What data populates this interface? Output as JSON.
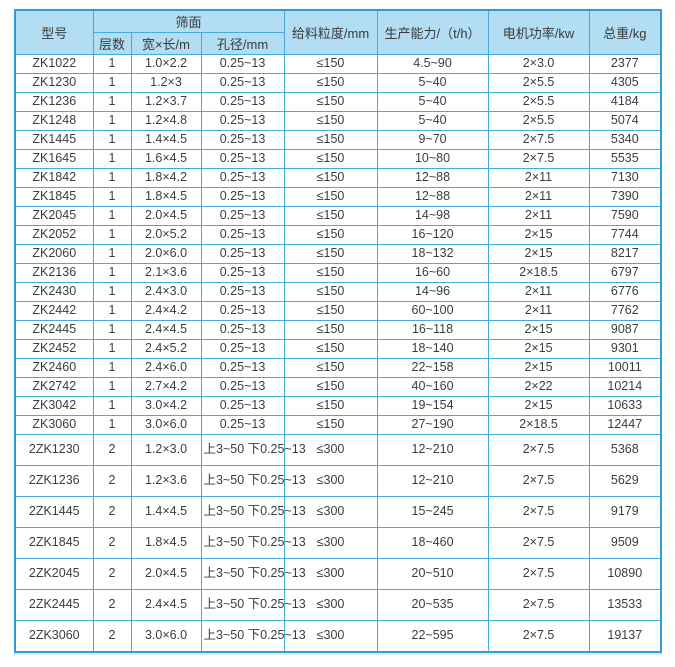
{
  "table": {
    "header": {
      "model": "型号",
      "screen_surface": "筛面",
      "layers": "层数",
      "width_length": "宽×长/m",
      "aperture": "孔径/mm",
      "feed_size": "给料粒度/mm",
      "capacity": "生产能力/（t/h）",
      "motor_power": "电机功率/kw",
      "total_weight": "总重/kg"
    },
    "row_keys": [
      "model",
      "layers",
      "size",
      "aperture",
      "feed",
      "capacity",
      "power",
      "weight"
    ],
    "rows": [
      {
        "model": "ZK1022",
        "layers": "1",
        "size": "1.0×2.2",
        "aperture": "0.25~13",
        "feed": "≤150",
        "capacity": "4.5~90",
        "power": "2×3.0",
        "weight": "2377"
      },
      {
        "model": "ZK1230",
        "layers": "1",
        "size": "1.2×3",
        "aperture": "0.25~13",
        "feed": "≤150",
        "capacity": "5~40",
        "power": "2×5.5",
        "weight": "4305"
      },
      {
        "model": "ZK1236",
        "layers": "1",
        "size": "1.2×3.7",
        "aperture": "0.25~13",
        "feed": "≤150",
        "capacity": "5~40",
        "power": "2×5.5",
        "weight": "4184"
      },
      {
        "model": "ZK1248",
        "layers": "1",
        "size": "1.2×4.8",
        "aperture": "0.25~13",
        "feed": "≤150",
        "capacity": "5~40",
        "power": "2×5.5",
        "weight": "5074"
      },
      {
        "model": "ZK1445",
        "layers": "1",
        "size": "1.4×4.5",
        "aperture": "0.25~13",
        "feed": "≤150",
        "capacity": "9~70",
        "power": "2×7.5",
        "weight": "5340"
      },
      {
        "model": "ZK1645",
        "layers": "1",
        "size": "1.6×4.5",
        "aperture": "0.25~13",
        "feed": "≤150",
        "capacity": "10~80",
        "power": "2×7.5",
        "weight": "5535"
      },
      {
        "model": "ZK1842",
        "layers": "1",
        "size": "1.8×4.2",
        "aperture": "0.25~13",
        "feed": "≤150",
        "capacity": "12~88",
        "power": "2×11",
        "weight": "7130"
      },
      {
        "model": "ZK1845",
        "layers": "1",
        "size": "1.8×4.5",
        "aperture": "0.25~13",
        "feed": "≤150",
        "capacity": "12~88",
        "power": "2×11",
        "weight": "7390"
      },
      {
        "model": "ZK2045",
        "layers": "1",
        "size": "2.0×4.5",
        "aperture": "0.25~13",
        "feed": "≤150",
        "capacity": "14~98",
        "power": "2×11",
        "weight": "7590"
      },
      {
        "model": "ZK2052",
        "layers": "1",
        "size": "2.0×5.2",
        "aperture": "0.25~13",
        "feed": "≤150",
        "capacity": "16~120",
        "power": "2×15",
        "weight": "7744"
      },
      {
        "model": "ZK2060",
        "layers": "1",
        "size": "2.0×6.0",
        "aperture": "0.25~13",
        "feed": "≤150",
        "capacity": "18~132",
        "power": "2×15",
        "weight": "8217"
      },
      {
        "model": "ZK2136",
        "layers": "1",
        "size": "2.1×3.6",
        "aperture": "0.25~13",
        "feed": "≤150",
        "capacity": "16~60",
        "power": "2×18.5",
        "weight": "6797"
      },
      {
        "model": "ZK2430",
        "layers": "1",
        "size": "2.4×3.0",
        "aperture": "0.25~13",
        "feed": "≤150",
        "capacity": "14~96",
        "power": "2×11",
        "weight": "6776"
      },
      {
        "model": "ZK2442",
        "layers": "1",
        "size": "2.4×4.2",
        "aperture": "0.25~13",
        "feed": "≤150",
        "capacity": "60~100",
        "power": "2×11",
        "weight": "7762"
      },
      {
        "model": "ZK2445",
        "layers": "1",
        "size": "2.4×4.5",
        "aperture": "0.25~13",
        "feed": "≤150",
        "capacity": "16~118",
        "power": "2×15",
        "weight": "9087"
      },
      {
        "model": "ZK2452",
        "layers": "1",
        "size": "2.4×5.2",
        "aperture": "0.25~13",
        "feed": "≤150",
        "capacity": "18~140",
        "power": "2×15",
        "weight": "9301"
      },
      {
        "model": "ZK2460",
        "layers": "1",
        "size": "2.4×6.0",
        "aperture": "0.25~13",
        "feed": "≤150",
        "capacity": "22~158",
        "power": "2×15",
        "weight": "10011"
      },
      {
        "model": "ZK2742",
        "layers": "1",
        "size": "2.7×4.2",
        "aperture": "0.25~13",
        "feed": "≤150",
        "capacity": "40~160",
        "power": "2×22",
        "weight": "10214"
      },
      {
        "model": "ZK3042",
        "layers": "1",
        "size": "3.0×4.2",
        "aperture": "0.25~13",
        "feed": "≤150",
        "capacity": "19~154",
        "power": "2×15",
        "weight": "10633"
      },
      {
        "model": "ZK3060",
        "layers": "1",
        "size": "3.0×6.0",
        "aperture": "0.25~13",
        "feed": "≤150",
        "capacity": "27~190",
        "power": "2×18.5",
        "weight": "12447"
      },
      {
        "model": "2ZK1230",
        "layers": "2",
        "size": "1.2×3.0",
        "aperture": "上3~50\n下0.25~13",
        "feed": "≤300",
        "capacity": "12~210",
        "power": "2×7.5",
        "weight": "5368"
      },
      {
        "model": "2ZK1236",
        "layers": "2",
        "size": "1.2×3.6",
        "aperture": "上3~50\n下0.25~13",
        "feed": "≤300",
        "capacity": "12~210",
        "power": "2×7.5",
        "weight": "5629"
      },
      {
        "model": "2ZK1445",
        "layers": "2",
        "size": "1.4×4.5",
        "aperture": "上3~50\n下0.25~13",
        "feed": "≤300",
        "capacity": "15~245",
        "power": "2×7.5",
        "weight": "9179"
      },
      {
        "model": "2ZK1845",
        "layers": "2",
        "size": "1.8×4.5",
        "aperture": "上3~50\n下0.25~13",
        "feed": "≤300",
        "capacity": "18~460",
        "power": "2×7.5",
        "weight": "9509"
      },
      {
        "model": "2ZK2045",
        "layers": "2",
        "size": "2.0×4.5",
        "aperture": "上3~50\n下0.25~13",
        "feed": "≤300",
        "capacity": "20~510",
        "power": "2×7.5",
        "weight": "10890"
      },
      {
        "model": "2ZK2445",
        "layers": "2",
        "size": "2.4×4.5",
        "aperture": "上3~50\n下0.25~13",
        "feed": "≤300",
        "capacity": "20~535",
        "power": "2×7.5",
        "weight": "13533"
      },
      {
        "model": "2ZK3060",
        "layers": "2",
        "size": "3.0×6.0",
        "aperture": "上3~50\n下0.25~13",
        "feed": "≤300",
        "capacity": "22~595",
        "power": "2×7.5",
        "weight": "19137"
      }
    ],
    "colors": {
      "header_bg": "#b3ddf3",
      "grid_border": "#45aadd",
      "outer_border": "#2f9ed8",
      "text": "#3d3d3d"
    }
  }
}
